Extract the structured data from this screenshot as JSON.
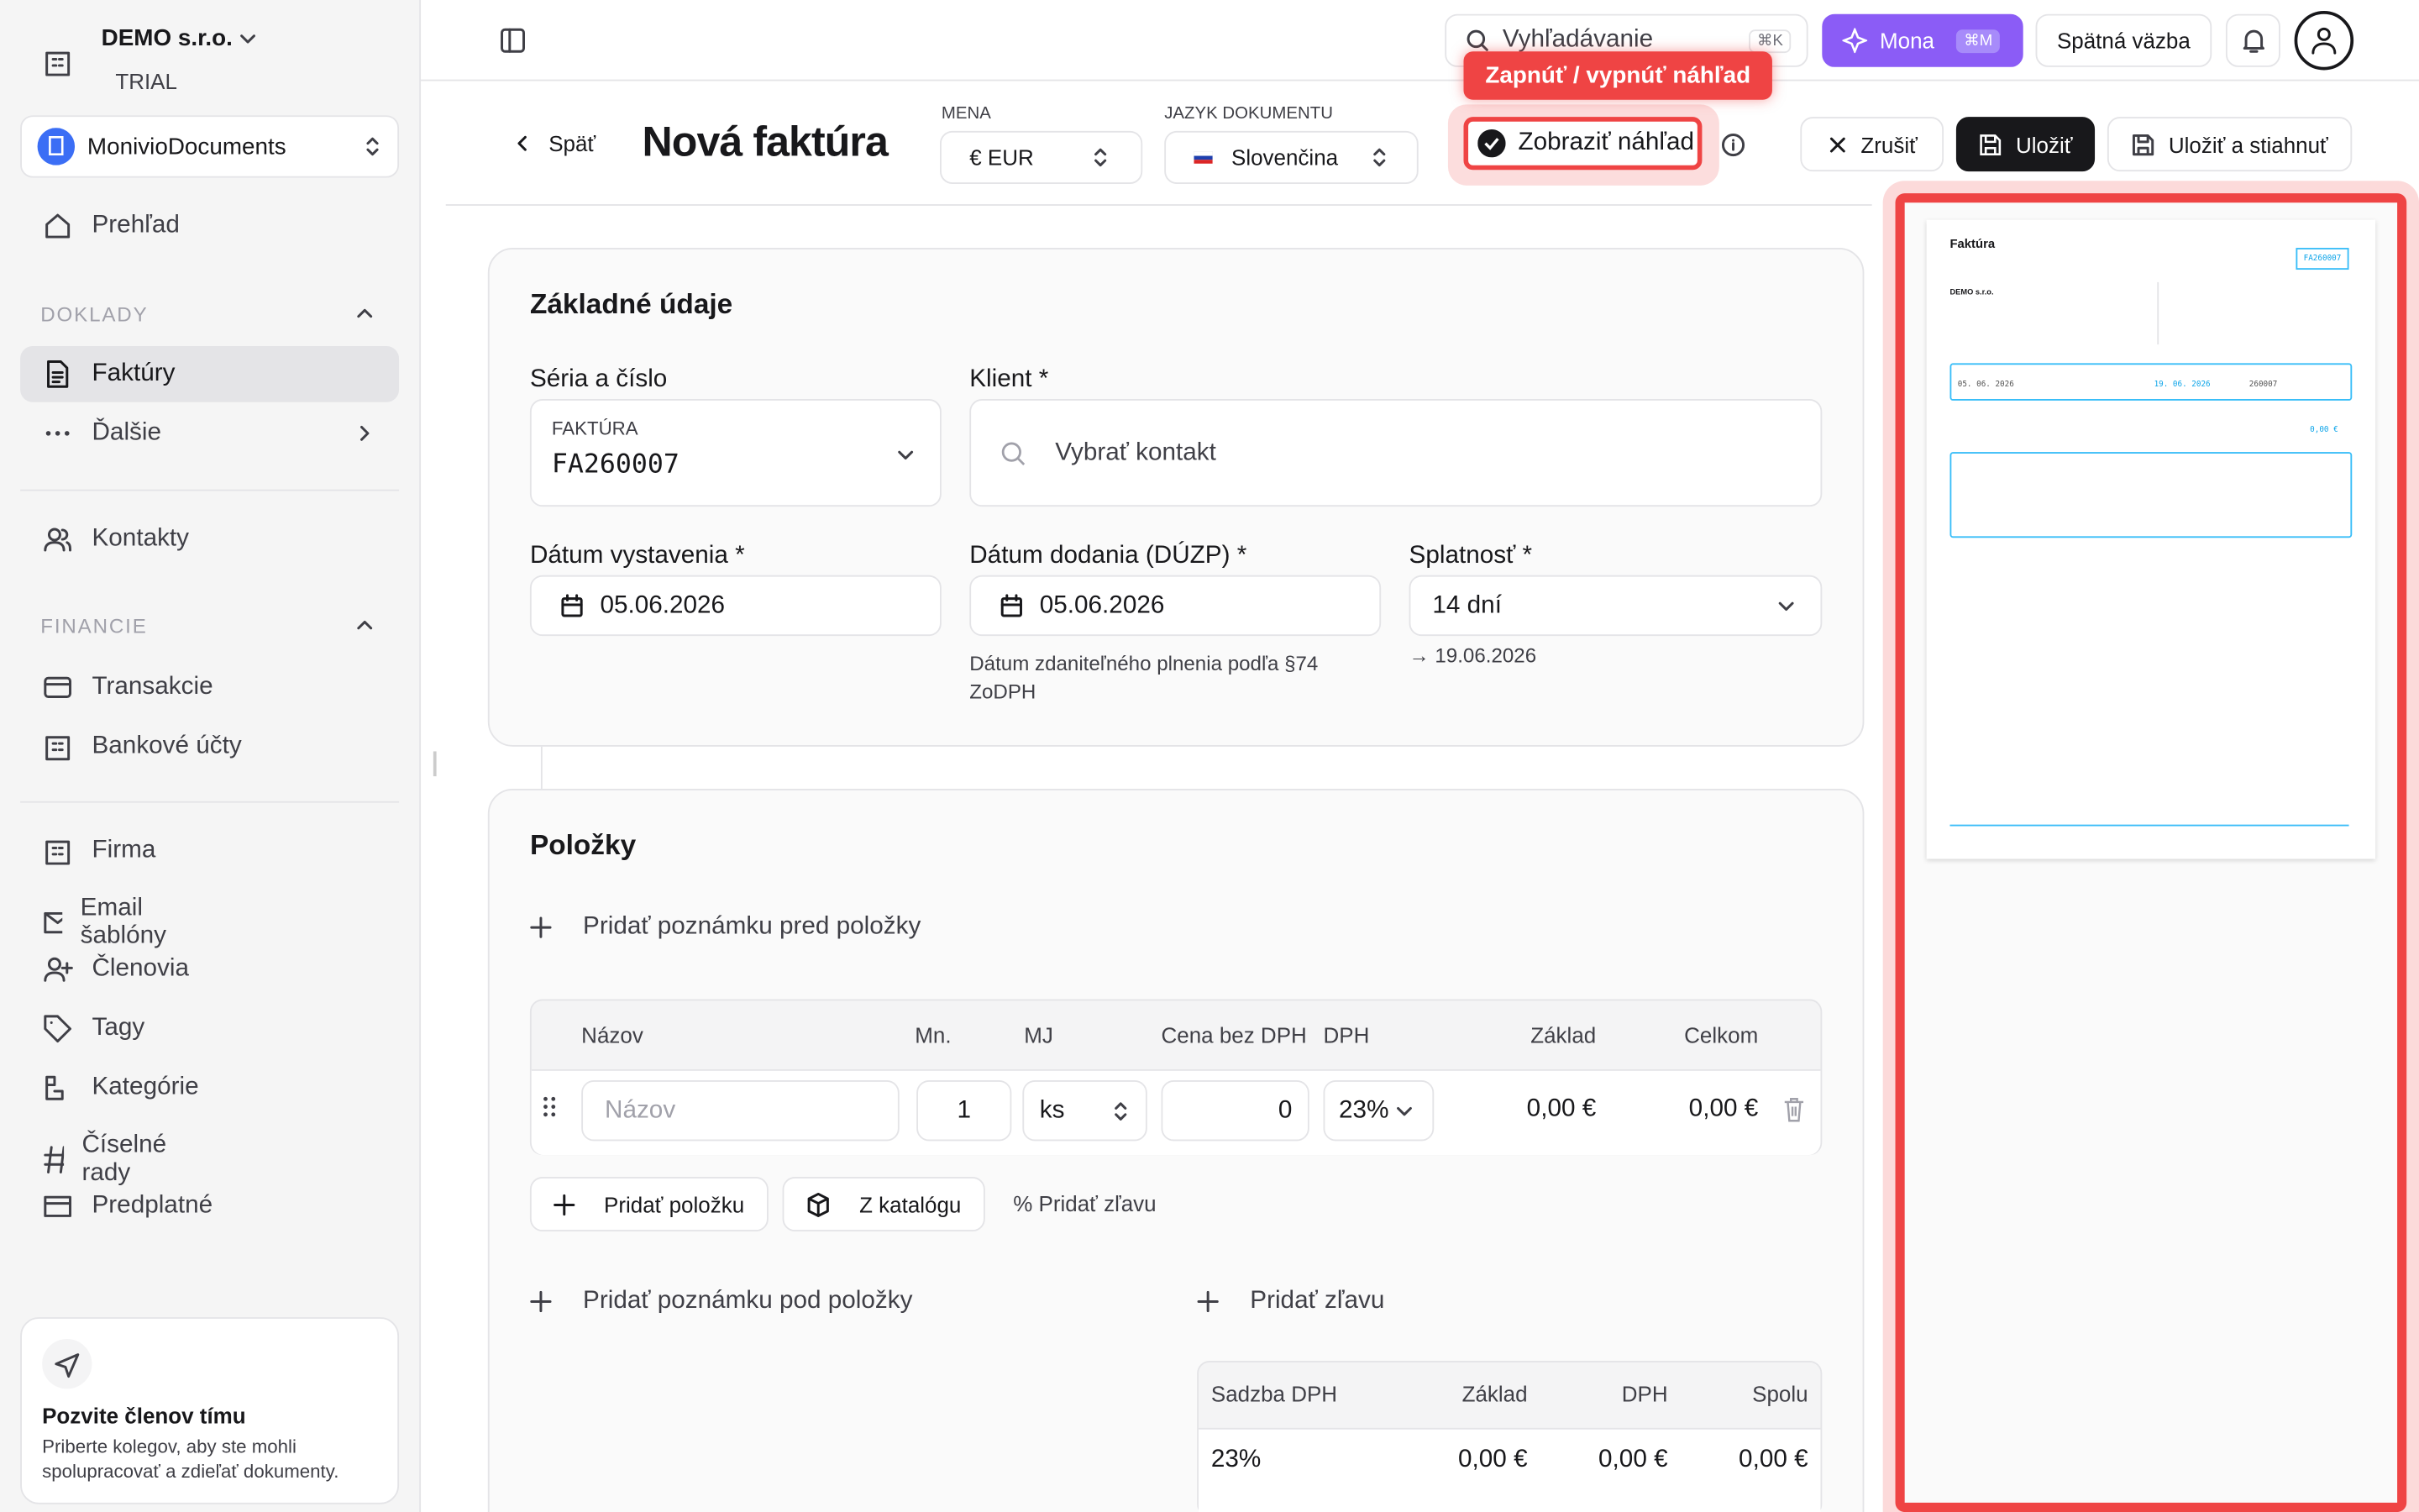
{
  "sidebar": {
    "company": "DEMO s.r.o.",
    "plan": "TRIAL",
    "workspace": "MonivioDocuments",
    "overview": "Prehľad",
    "section_documents": "DOKLADY",
    "invoices": "Faktúry",
    "more": "Ďalšie",
    "contacts": "Kontakty",
    "section_finance": "FINANCIE",
    "transactions": "Transakcie",
    "bank_accounts": "Bankové účty",
    "nav": [
      "Firma",
      "Email šablóny",
      "Členovia",
      "Tagy",
      "Kategórie",
      "Číselné rady",
      "Predplatné"
    ],
    "invite_title": "Pozvite členov tímu",
    "invite_text": "Priberte kolegov, aby ste mohli spolupracovať a zdieľať dokumenty."
  },
  "topbar": {
    "search": "Vyhľadávanie",
    "search_shortcut": "⌘K",
    "assistant": "Mona",
    "assistant_shortcut": "⌘M",
    "feedback": "Spätná väzba"
  },
  "header": {
    "back": "Späť",
    "title": "Nová faktúra",
    "currency_label": "MENA",
    "currency": "€ EUR",
    "language_label": "JAZYK DOKUMENTU",
    "language": "Slovenčina",
    "tooltip": "Zapnúť / vypnúť náhľad",
    "preview_toggle": "Zobraziť náhľad",
    "cancel": "Zrušiť",
    "save": "Uložiť",
    "save_download": "Uložiť a stiahnuť"
  },
  "basic": {
    "title": "Základné údaje",
    "series_label": "Séria a číslo",
    "series_type": "FAKTÚRA",
    "series_number": "FA260007",
    "client_label": "Klient *",
    "client_placeholder": "Vybrať kontakt",
    "issue_label": "Dátum vystavenia *",
    "issue_date": "05.06.2026",
    "delivery_label": "Dátum dodania (DÚZP) *",
    "delivery_date": "05.06.2026",
    "delivery_hint": "Dátum zdaniteľného plnenia podľa §74 ZoDPH",
    "due_label": "Splatnosť *",
    "due": "14 dní",
    "due_date": "→ 19.06.2026"
  },
  "items": {
    "title": "Položky",
    "note_before": "Pridať poznámku pred položky",
    "columns": [
      "Názov",
      "Mn.",
      "MJ",
      "Cena bez DPH",
      "DPH",
      "Základ",
      "Celkom"
    ],
    "row": {
      "name_placeholder": "Názov",
      "quantity": "1",
      "unit": "ks",
      "price": "0",
      "vat": "23%",
      "base": "0,00 €",
      "total": "0,00 €"
    },
    "add_item": "Pridať položku",
    "catalog": "Z katalógu",
    "discount_inline": "% Pridať zľavu",
    "note_after": "Pridať poznámku pod položky",
    "add_discount": "Pridať zľavu",
    "vat_columns": [
      "Sadzba DPH",
      "Základ",
      "DPH",
      "Spolu"
    ],
    "vat_row": [
      "23%",
      "0,00 €",
      "0,00 €",
      "0,00 €"
    ]
  },
  "preview": {
    "title": "Faktúra",
    "number": "FA260007",
    "supplier": "DEMO s.r.o.",
    "issue": "05. 06. 2026",
    "due": "19. 06. 2026",
    "vs": "260007",
    "total": "0,00 €"
  }
}
